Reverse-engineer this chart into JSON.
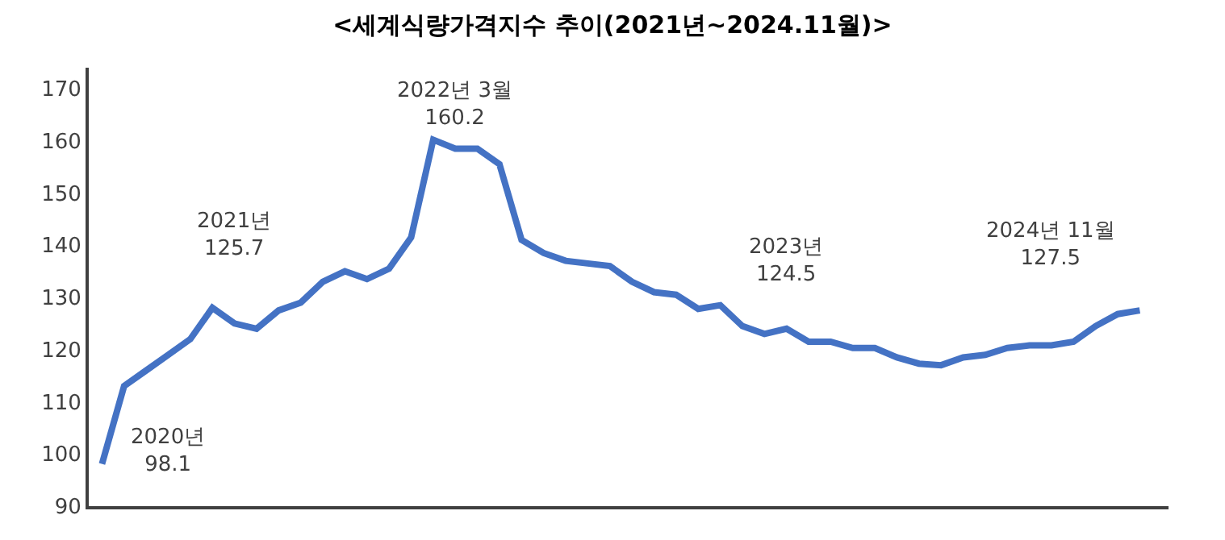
{
  "chart_data": {
    "type": "line",
    "title": "<세계식량가격지수 추이(2021년~2024.11월)>",
    "categories": [
      null,
      null,
      null,
      null,
      null,
      null,
      null,
      null,
      null,
      null,
      null,
      null,
      null,
      null,
      null,
      null,
      null,
      null,
      null,
      null,
      null,
      null,
      null,
      null,
      null,
      null,
      null,
      null,
      null,
      null,
      null,
      null,
      null,
      null,
      null,
      null,
      null,
      null,
      null,
      null,
      null,
      null,
      null,
      null,
      null,
      null,
      null,
      null
    ],
    "series": [
      {
        "color": "#4472c4",
        "values": [
          98.1,
          113,
          116,
          119,
          122,
          128,
          125,
          124,
          127.5,
          129,
          133,
          135,
          133.5,
          135.5,
          141.5,
          160.2,
          158.5,
          158.5,
          155.5,
          141,
          138.5,
          137,
          136.5,
          136,
          133,
          131,
          130.5,
          127.8,
          128.5,
          124.5,
          123,
          124,
          121.5,
          121.5,
          120.3,
          120.3,
          118.5,
          117.3,
          117,
          118.5,
          119,
          120.3,
          120.8,
          120.8,
          121.5,
          124.5,
          126.8,
          127.5
        ]
      }
    ],
    "annotations": [
      "2020년\n98.1",
      "2021년\n125.7",
      "2022년 3월\n160.2",
      "2023년\n124.5",
      "2024년 11월\n127.5"
    ],
    "ylim": [
      90,
      174
    ],
    "yticks": [
      90,
      100,
      110,
      120,
      130,
      140,
      150,
      160,
      170
    ],
    "marker": "none",
    "line_style": "solid"
  }
}
